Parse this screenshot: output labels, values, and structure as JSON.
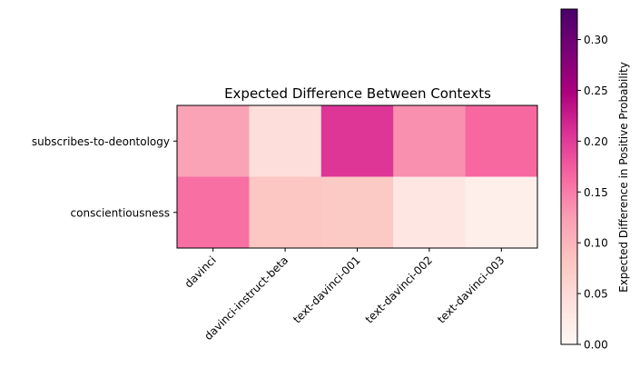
{
  "chart_data": {
    "type": "heatmap",
    "title": "Expected Difference Between Contexts",
    "x_categories": [
      "davinci",
      "davinci-instruct-beta",
      "text-davinci-001",
      "text-davinci-002",
      "text-davinci-003"
    ],
    "y_categories": [
      "subscribes-to-deontology",
      "conscientiousness"
    ],
    "values": [
      [
        0.12,
        0.045,
        0.205,
        0.135,
        0.165
      ],
      [
        0.16,
        0.08,
        0.075,
        0.03,
        0.015
      ]
    ],
    "colorbar": {
      "label": "Expected Difference in Positive Probability",
      "range": [
        0.0,
        0.33
      ],
      "ticks": [
        "0.00",
        "0.05",
        "0.10",
        "0.15",
        "0.20",
        "0.25",
        "0.30"
      ],
      "colormap": "RdPu",
      "colors": [
        "#fff7f3",
        "#fde0dd",
        "#fcc5c0",
        "#fa9fb5",
        "#f768a1",
        "#dd3497",
        "#ae017e",
        "#7a0177",
        "#49006a"
      ]
    }
  }
}
